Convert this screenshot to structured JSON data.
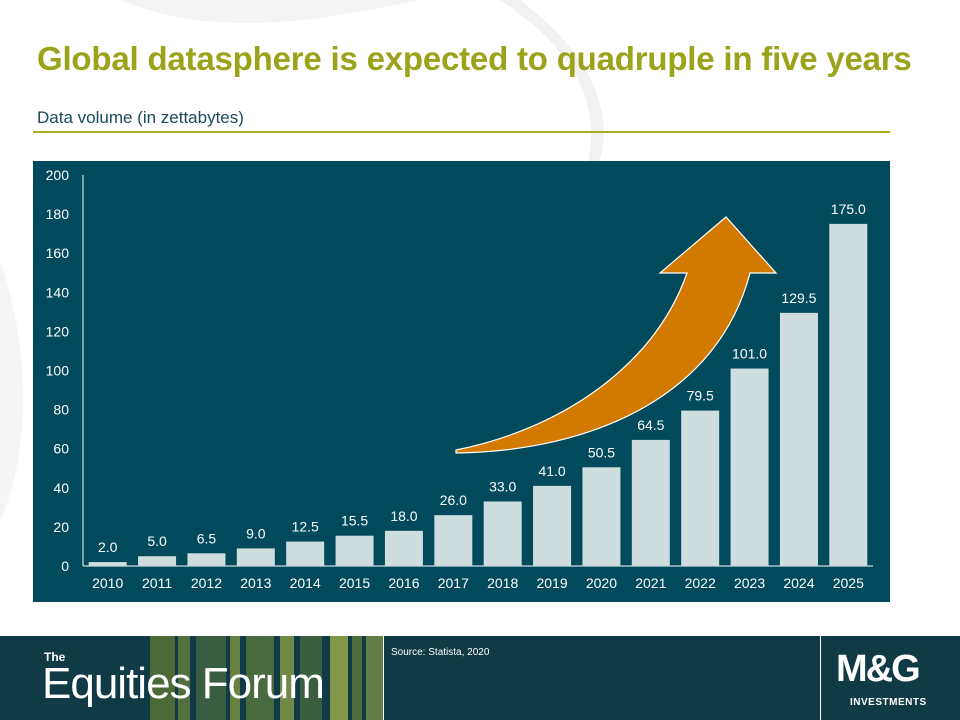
{
  "slide": {
    "title": "Global datasphere is expected to quadruple in five years",
    "subtitle": "Data volume (in zettabytes)"
  },
  "footer": {
    "brand_small": "The",
    "brand_name": "Equities Forum",
    "source": "Source: Statista, 2020",
    "logo_text": "M&G",
    "logo_subtext": "INVESTMENTS"
  },
  "colors": {
    "title": "#9aa31a",
    "panel": "#004a5c",
    "bar": "#cfdddf",
    "arrow": "#d27a00"
  },
  "chart_data": {
    "type": "bar",
    "title": "",
    "xlabel": "",
    "ylabel": "",
    "categories": [
      "2010",
      "2011",
      "2012",
      "2013",
      "2014",
      "2015",
      "2016",
      "2017",
      "2018",
      "2019",
      "2020",
      "2021",
      "2022",
      "2023",
      "2024",
      "2025"
    ],
    "values": [
      2.0,
      5.0,
      6.5,
      9.0,
      12.5,
      15.5,
      18.0,
      26.0,
      33.0,
      41.0,
      50.5,
      64.5,
      79.5,
      101.0,
      129.5,
      175.0
    ],
    "value_labels": [
      "2.0",
      "5.0",
      "6.5",
      "9.0",
      "12.5",
      "15.5",
      "18.0",
      "26.0",
      "33.0",
      "41.0",
      "50.5",
      "64.5",
      "79.5",
      "101.0",
      "129.5",
      "175.0"
    ],
    "ylim": [
      0,
      200
    ],
    "yticks": [
      "0",
      "20",
      "40",
      "60",
      "80",
      "100",
      "120",
      "140",
      "160",
      "180",
      "200"
    ],
    "grid": false,
    "annotation": "upward-growth-arrow"
  }
}
